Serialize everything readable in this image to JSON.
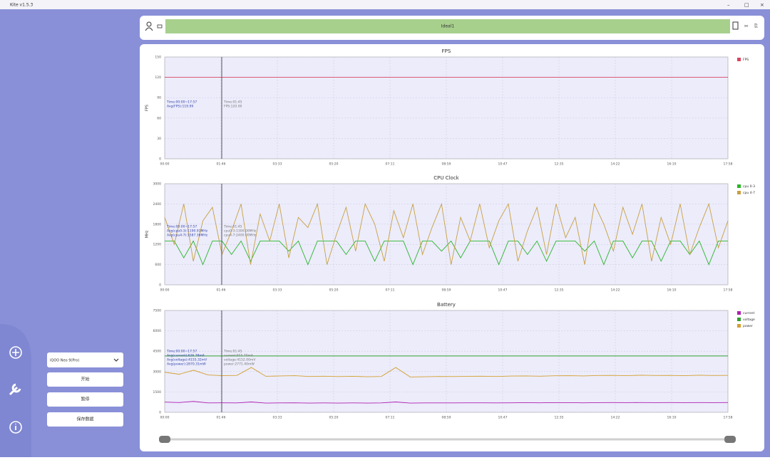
{
  "window_title": "Kite v1.5.3",
  "top_label": "Ideal1",
  "device": "iQOO Neo 9(Pro)",
  "buttons": [
    "开始",
    "暂停",
    "保存数据"
  ],
  "chart_data": [
    {
      "type": "line",
      "title": "FPS",
      "y_label": "FPS",
      "xticks": [
        "00:00",
        "01:46",
        "03:33",
        "05:20",
        "07:11",
        "08:59",
        "10:47",
        "12:35",
        "14:22",
        "16:10",
        "17:58"
      ],
      "ylim": [
        0,
        150
      ],
      "yticks": [
        0,
        30,
        60,
        90,
        120,
        150
      ],
      "grid": true,
      "annotations": [
        [
          "Time:00:00~17:57",
          "Avg(FPS):119.99"
        ],
        [
          "Time:01:45",
          "FPS:120.00"
        ]
      ],
      "series": [
        {
          "name": "FPS",
          "color": "#d9455f",
          "values": [
            120,
            120,
            120,
            120,
            120
          ]
        }
      ]
    },
    {
      "type": "line",
      "title": "CPU Clock",
      "y_label": "MHz",
      "xticks": [
        "00:00",
        "01:46",
        "03:33",
        "05:20",
        "07:11",
        "08:59",
        "10:47",
        "12:35",
        "14:22",
        "16:10",
        "17:58"
      ],
      "ylim": [
        0,
        3000
      ],
      "yticks": [
        0,
        600,
        1200,
        1800,
        2400,
        3000
      ],
      "grid": true,
      "annotations": [
        [
          "Time:00:00~17:57",
          "Avg(cpu0-3):1190.91MHz",
          "Avg(cpu4-7):1587.36MHz"
        ],
        [
          "Time:01:45",
          "cpu0-3:1300.00MHz",
          "cpu4-7:2400.00MHz"
        ]
      ],
      "series": [
        {
          "name": "cpu 0-3",
          "color": "#2bb52b",
          "values": [
            1300,
            1300,
            800,
            1300,
            600,
            1300,
            1300,
            900,
            1300,
            700,
            1300,
            1300,
            1300,
            1000,
            1300,
            600,
            1300,
            1300,
            1300,
            900,
            1300,
            1300,
            700,
            1300,
            1300,
            1300,
            600,
            1300,
            1300,
            1000,
            1300,
            800,
            1300,
            1300,
            1300,
            600,
            1300,
            1300,
            900,
            1300,
            700,
            1300,
            1300,
            1300,
            1000,
            1300,
            600,
            1300,
            1300,
            800,
            1300,
            1300,
            700,
            1300,
            1300,
            900,
            1300,
            600,
            1300,
            1300
          ]
        },
        {
          "name": "cpu 4-7",
          "color": "#c8a040",
          "values": [
            2000,
            1200,
            2400,
            700,
            1900,
            2300,
            900,
            1600,
            2400,
            600,
            2100,
            1300,
            2400,
            800,
            2000,
            1700,
            2400,
            600,
            1500,
            2300,
            1000,
            2400,
            1800,
            700,
            2200,
            1400,
            2400,
            900,
            1700,
            2400,
            600,
            2000,
            1300,
            2400,
            1100,
            1900,
            2400,
            700,
            1600,
            2300,
            900,
            2400,
            1400,
            2000,
            600,
            2400,
            1800,
            1000,
            2300,
            1500,
            2400,
            700,
            2000,
            1200,
            2400,
            900,
            1700,
            2400,
            1100,
            1900
          ]
        }
      ]
    },
    {
      "type": "line",
      "title": "Battery",
      "xticks": [
        "00:00",
        "01:46",
        "03:33",
        "05:20",
        "07:11",
        "08:59",
        "10:47",
        "12:35",
        "14:22",
        "16:10",
        "17:58"
      ],
      "ylim": [
        0,
        7500
      ],
      "yticks": [
        0,
        1500,
        3000,
        4500,
        6000,
        7500
      ],
      "grid": true,
      "annotations": [
        [
          "Time:00:00~17:57",
          "Avg(current):626.78mA",
          "Avg(voltage):4155.32mV",
          "Avg(power):2870.31mW"
        ],
        [
          "Time:01:45",
          "current:655.70mA",
          "voltage:4152.00mV",
          "power:2771.40mW"
        ]
      ],
      "series": [
        {
          "name": "current",
          "color": "#b020b0",
          "values": [
            750,
            720,
            800,
            690,
            700,
            690,
            760,
            680,
            690,
            700,
            680,
            690,
            680,
            690,
            680,
            690,
            760,
            680,
            690,
            690,
            690,
            700,
            700,
            690,
            700,
            710,
            700,
            710,
            710,
            700,
            710,
            720,
            710,
            720,
            710,
            720,
            710,
            720,
            710,
            720
          ]
        },
        {
          "name": "voltage",
          "color": "#30a030",
          "values": [
            4150,
            4150,
            4150,
            4150,
            4150
          ]
        },
        {
          "name": "power",
          "color": "#d4a030",
          "values": [
            2950,
            2800,
            3100,
            2750,
            2700,
            2720,
            3300,
            2650,
            2680,
            2700,
            2640,
            2660,
            2630,
            2650,
            2620,
            2640,
            3300,
            2600,
            2620,
            2640,
            2630,
            2650,
            2660,
            2640,
            2670,
            2680,
            2660,
            2690,
            2700,
            2680,
            2710,
            2720,
            2700,
            2730,
            2710,
            2720,
            2700,
            2730,
            2710,
            2720
          ]
        }
      ]
    }
  ]
}
